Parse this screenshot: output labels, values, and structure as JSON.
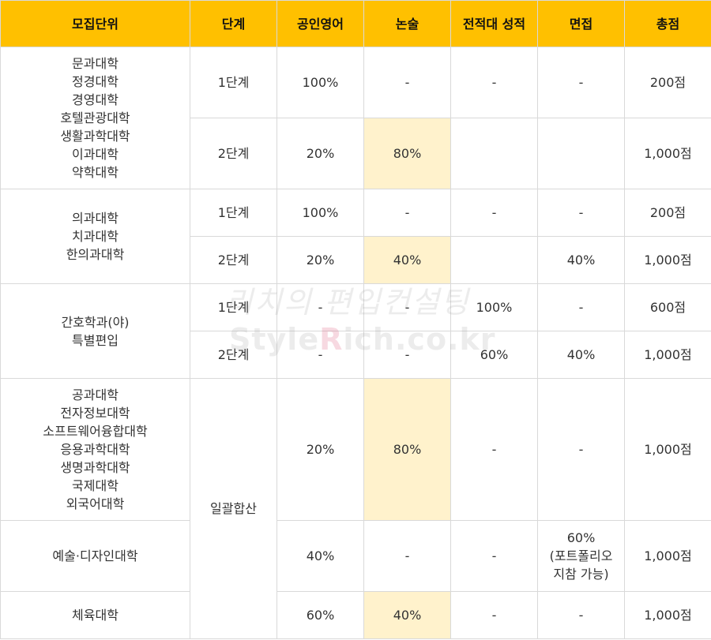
{
  "headers": [
    "모집단위",
    "단계",
    "공인영어",
    "논술",
    "전적대 성적",
    "면접",
    "총점"
  ],
  "groups": [
    {
      "units": "문과대학\n정경대학\n경영대학\n호텔관광대학\n생활과학대학\n이과대학\n약학대학",
      "rows": [
        {
          "stage": "1단계",
          "english": "100%",
          "essay": "-",
          "gpa": "-",
          "interview": "-",
          "total": "200점"
        },
        {
          "stage": "2단계",
          "english": "20%",
          "essay": "80%",
          "gpa": "",
          "interview": "",
          "total": "1,000점"
        }
      ]
    },
    {
      "units": "의과대학\n치과대학\n한의과대학",
      "rows": [
        {
          "stage": "1단계",
          "english": "100%",
          "essay": "-",
          "gpa": "-",
          "interview": "-",
          "total": "200점"
        },
        {
          "stage": "2단계",
          "english": "20%",
          "essay": "40%",
          "gpa": "",
          "interview": "40%",
          "total": "1,000점"
        }
      ]
    },
    {
      "units": "간호학과(야)\n특별편입",
      "rows": [
        {
          "stage": "1단계",
          "english": "-",
          "essay": "-",
          "gpa": "100%",
          "interview": "-",
          "total": "600점"
        },
        {
          "stage": "2단계",
          "english": "-",
          "essay": "-",
          "gpa": "60%",
          "interview": "40%",
          "total": "1,000점"
        }
      ]
    }
  ],
  "combined_stage": "일괄합산",
  "combined": [
    {
      "units": "공과대학\n전자정보대학\n소프트웨어융합대학\n응용과학대학\n생명과학대학\n국제대학\n외국어대학",
      "english": "20%",
      "essay": "80%",
      "gpa": "-",
      "interview": "-",
      "total": "1,000점"
    },
    {
      "units": "예술·디자인대학",
      "english": "40%",
      "essay": "-",
      "gpa": "-",
      "interview": "60%\n(포트폴리오\n지참 가능)",
      "total": "1,000점"
    },
    {
      "units": "체육대학",
      "english": "60%",
      "essay": "40%",
      "gpa": "-",
      "interview": "-",
      "total": "1,000점"
    }
  ],
  "watermark": {
    "line1": "리치의 편입컨설팅",
    "line2_a": "Style",
    "line2_b": "R",
    "line2_c": "ich.co.kr"
  }
}
